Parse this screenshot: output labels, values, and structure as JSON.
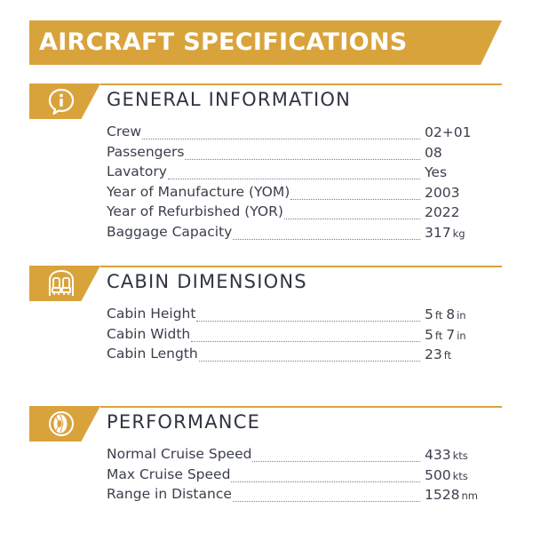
{
  "title": "AIRCRAFT SPECIFICATIONS",
  "colors": {
    "accent": "#d9a33c",
    "text": "#3a3f4b",
    "heading": "#2f3441"
  },
  "sections": [
    {
      "title": "GENERAL INFORMATION",
      "icon": "info-speech-bubble-icon",
      "rows": [
        {
          "label": "Crew",
          "value": "02+01"
        },
        {
          "label": "Passengers",
          "value": "08"
        },
        {
          "label": "Lavatory",
          "value": "Yes"
        },
        {
          "label": "Year of Manufacture (YOM)",
          "value": "2003"
        },
        {
          "label": "Year of Refurbished (YOR)",
          "value": "2022"
        },
        {
          "label": "Baggage Capacity",
          "value": "317",
          "unit": "kg"
        }
      ]
    },
    {
      "title": "CABIN DIMENSIONS",
      "icon": "cabin-seats-icon",
      "rows": [
        {
          "label": "Cabin Height",
          "value": "5",
          "unit": "ft",
          "value2": "8",
          "unit2": "in"
        },
        {
          "label": "Cabin Width",
          "value": "5",
          "unit": "ft",
          "value2": "7",
          "unit2": "in"
        },
        {
          "label": "Cabin Length",
          "value": "23",
          "unit": "ft"
        }
      ]
    },
    {
      "title": "PERFORMANCE",
      "icon": "jet-engine-icon",
      "rows": [
        {
          "label": "Normal Cruise Speed",
          "value": "433",
          "unit": "kts"
        },
        {
          "label": "Max Cruise Speed",
          "value": "500",
          "unit": "kts"
        },
        {
          "label": "Range in Distance",
          "value": "1528",
          "unit": "nm"
        }
      ]
    }
  ]
}
